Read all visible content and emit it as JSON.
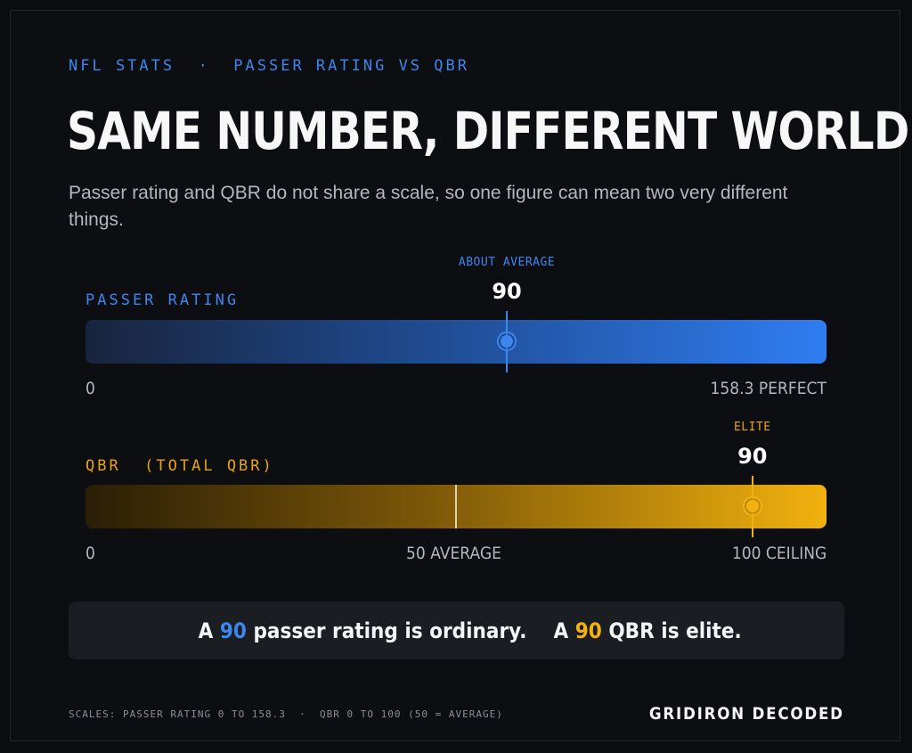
{
  "header": {
    "kicker": "NFL STATS  ·  PASSER RATING VS QBR",
    "title": "SAME NUMBER, DIFFERENT WORLDS",
    "subtitle": "Passer rating and QBR do not share a scale, so one figure can mean two very different things."
  },
  "passer_rating": {
    "label": "PASSER RATING",
    "tag": "ABOUT AVERAGE",
    "value": "90",
    "value_num": 90,
    "min": 0,
    "max": 158.3,
    "axis_min_label": "0",
    "axis_max_label": "158.3 PERFECT",
    "color": "#3c86ee"
  },
  "qbr": {
    "label": "QBR  (TOTAL QBR)",
    "tag": "ELITE",
    "value": "90",
    "value_num": 90,
    "min": 0,
    "max": 100,
    "average": 50,
    "axis_min_label": "0",
    "axis_mid_label": "50 AVERAGE",
    "axis_max_label": "100 CEILING",
    "color": "#f2b10e"
  },
  "callout": {
    "part1": "A ",
    "pr_value": "90",
    "part2": " passer rating is ordinary.    A ",
    "qbr_value": "90",
    "part3": " QBR is elite."
  },
  "footer": {
    "note": "SCALES: PASSER RATING 0 TO 158.3  ·  QBR 0 TO 100 (50 = AVERAGE)",
    "brand": "GRIDIRON DECODED"
  }
}
